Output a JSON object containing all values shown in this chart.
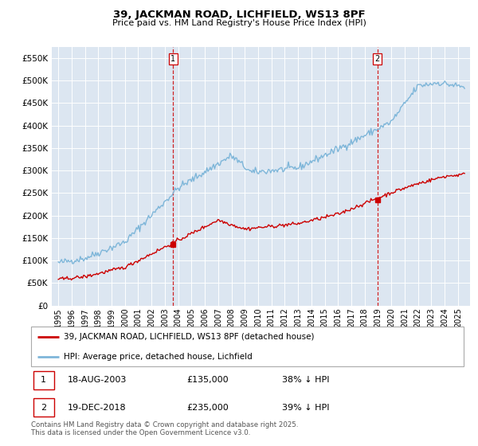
{
  "title": "39, JACKMAN ROAD, LICHFIELD, WS13 8PF",
  "subtitle": "Price paid vs. HM Land Registry's House Price Index (HPI)",
  "ylim": [
    0,
    575000
  ],
  "yticks": [
    0,
    50000,
    100000,
    150000,
    200000,
    250000,
    300000,
    350000,
    400000,
    450000,
    500000,
    550000
  ],
  "ytick_labels": [
    "£0",
    "£50K",
    "£100K",
    "£150K",
    "£200K",
    "£250K",
    "£300K",
    "£350K",
    "£400K",
    "£450K",
    "£500K",
    "£550K"
  ],
  "background_color": "#dce6f1",
  "line_color_hpi": "#7eb6d9",
  "line_color_price": "#cc0000",
  "vline_color": "#cc0000",
  "sale1_year": 2003.625,
  "sale1_price": 135000,
  "sale2_year": 2018.958,
  "sale2_price": 235000,
  "annotation1": {
    "label": "1",
    "date": "18-AUG-2003",
    "price": "£135,000",
    "pct": "38% ↓ HPI"
  },
  "annotation2": {
    "label": "2",
    "date": "19-DEC-2018",
    "price": "£235,000",
    "pct": "39% ↓ HPI"
  },
  "legend_line1": "39, JACKMAN ROAD, LICHFIELD, WS13 8PF (detached house)",
  "legend_line2": "HPI: Average price, detached house, Lichfield",
  "footer": "Contains HM Land Registry data © Crown copyright and database right 2025.\nThis data is licensed under the Open Government Licence v3.0.",
  "xlim_start": 1994.5,
  "xlim_end": 2025.9,
  "xtick_years": [
    1995,
    1996,
    1997,
    1998,
    1999,
    2000,
    2001,
    2002,
    2003,
    2004,
    2005,
    2006,
    2007,
    2008,
    2009,
    2010,
    2011,
    2012,
    2013,
    2014,
    2015,
    2016,
    2017,
    2018,
    2019,
    2020,
    2021,
    2022,
    2023,
    2024,
    2025
  ]
}
